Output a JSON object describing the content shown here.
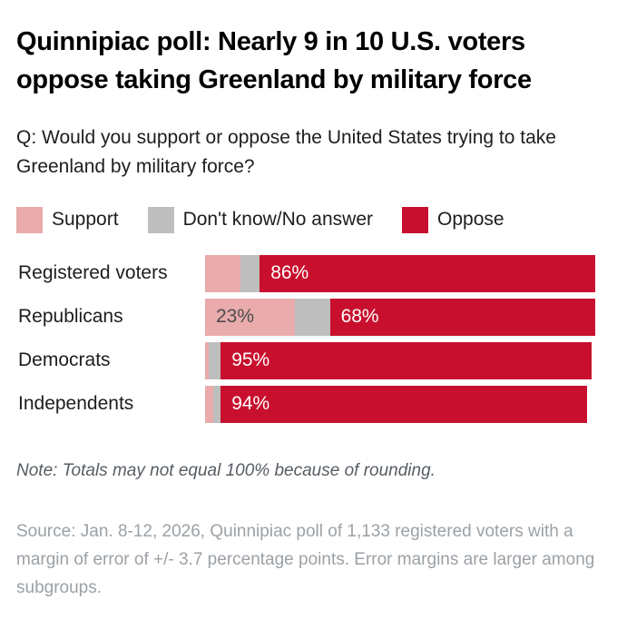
{
  "title": "Quinnipiac poll: Nearly 9 in 10 U.S. voters oppose taking Greenland by military force",
  "question": "Q: Would you support or oppose the United States trying to take Greenland by military force?",
  "legend": [
    {
      "key": "support",
      "label": "Support",
      "color": "#e9abab"
    },
    {
      "key": "dk",
      "label": "Don't know/No answer",
      "color": "#bebebe"
    },
    {
      "key": "oppose",
      "label": "Oppose",
      "color": "#c8102e"
    }
  ],
  "colors": {
    "support": "#e9abab",
    "dont_know": "#bebebe",
    "oppose": "#c8102e",
    "value_label_on_oppose": "#ffffff",
    "value_label_on_support": "#4c4c4e"
  },
  "note": "Note: Totals may not equal 100% because of rounding.",
  "source": "Source: Jan. 8-12, 2026, Quinnipiac poll of 1,133 registered voters with a margin of error of +/- 3.7 percentage points. Error margins are larger among subgroups.",
  "chart_data": {
    "type": "bar",
    "orientation": "horizontal",
    "stacked": true,
    "grid": false,
    "legend_position": "top",
    "xlim": [
      0,
      100
    ],
    "categories": [
      "Registered voters",
      "Republicans",
      "Democrats",
      "Independents"
    ],
    "series": [
      {
        "name": "Support",
        "key": "support",
        "values": [
          9,
          23,
          1,
          2
        ],
        "labels": [
          "",
          "23%",
          "",
          ""
        ]
      },
      {
        "name": "Don't know/No answer",
        "key": "dk",
        "values": [
          5,
          9,
          3,
          2
        ],
        "labels": [
          "",
          "",
          "",
          ""
        ]
      },
      {
        "name": "Oppose",
        "key": "oppose",
        "values": [
          86,
          68,
          95,
          94
        ],
        "labels": [
          "86%",
          "68%",
          "95%",
          "94%"
        ]
      }
    ]
  }
}
